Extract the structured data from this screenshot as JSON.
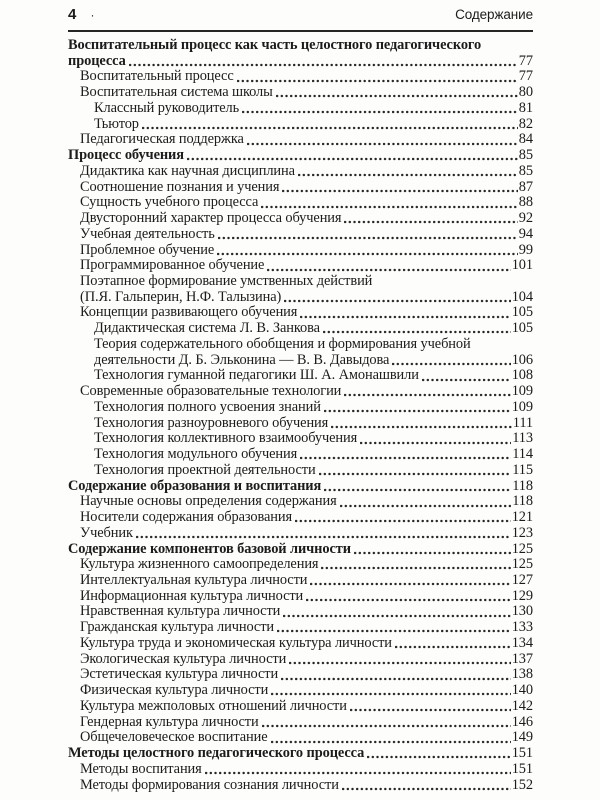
{
  "header": {
    "page_number": "4",
    "separator_bullet": "·",
    "title": "Содержание"
  },
  "colors": {
    "text": "#1c1c1c",
    "rule": "#262626",
    "background": "#fdfdfc"
  },
  "toc": {
    "entries": [
      {
        "level": 0,
        "bold": true,
        "lines": [
          "Воспитательный процесс как часть целостного педагогического",
          "процесса"
        ],
        "page": "77"
      },
      {
        "level": 1,
        "bold": false,
        "lines": [
          "Воспитательный процесс"
        ],
        "page": "77"
      },
      {
        "level": 1,
        "bold": false,
        "lines": [
          "Воспитательная система школы"
        ],
        "page": "80"
      },
      {
        "level": 2,
        "bold": false,
        "lines": [
          "Классный руководитель"
        ],
        "page": "81"
      },
      {
        "level": 2,
        "bold": false,
        "lines": [
          "Тьютор"
        ],
        "page": "82"
      },
      {
        "level": 1,
        "bold": false,
        "lines": [
          "Педагогическая поддержка"
        ],
        "page": "84"
      },
      {
        "level": 0,
        "bold": true,
        "lines": [
          "Процесс обучения"
        ],
        "page": "85"
      },
      {
        "level": 1,
        "bold": false,
        "lines": [
          "Дидактика как научная дисциплина"
        ],
        "page": "85"
      },
      {
        "level": 1,
        "bold": false,
        "lines": [
          "Соотношение познания и учения"
        ],
        "page": "87"
      },
      {
        "level": 1,
        "bold": false,
        "lines": [
          "Сущность учебного процесса"
        ],
        "page": "88"
      },
      {
        "level": 1,
        "bold": false,
        "lines": [
          "Двусторонний характер процесса обучения"
        ],
        "page": "92"
      },
      {
        "level": 1,
        "bold": false,
        "lines": [
          "Учебная деятельность"
        ],
        "page": "94"
      },
      {
        "level": 1,
        "bold": false,
        "lines": [
          "Проблемное обучение"
        ],
        "page": "99"
      },
      {
        "level": 1,
        "bold": false,
        "lines": [
          "Программированное обучение"
        ],
        "page": "101"
      },
      {
        "level": 1,
        "bold": false,
        "lines": [
          "Поэтапное формирование умственных действий",
          "(П.Я. Гальперин, Н.Ф. Талызина)"
        ],
        "page": "104"
      },
      {
        "level": 1,
        "bold": false,
        "lines": [
          "Концепции развивающего обучения"
        ],
        "page": "105"
      },
      {
        "level": 2,
        "bold": false,
        "lines": [
          "Дидактическая система Л. В. Занкова"
        ],
        "page": "105"
      },
      {
        "level": 2,
        "bold": false,
        "lines": [
          "Теория содержательного обобщения и формирования учебной",
          "деятельности Д. Б. Эльконина — В. В. Давыдова"
        ],
        "page": "106"
      },
      {
        "level": 2,
        "bold": false,
        "lines": [
          "Технология гуманной педагогики Ш. А. Амонашвили"
        ],
        "page": "108"
      },
      {
        "level": 1,
        "bold": false,
        "lines": [
          "Современные образовательные технологии"
        ],
        "page": "109"
      },
      {
        "level": 2,
        "bold": false,
        "lines": [
          "Технология полного усвоения знаний"
        ],
        "page": "109"
      },
      {
        "level": 2,
        "bold": false,
        "lines": [
          "Технология разноуровневого обучения"
        ],
        "page": "111"
      },
      {
        "level": 2,
        "bold": false,
        "lines": [
          "Технология коллективного взаимообучения"
        ],
        "page": "113"
      },
      {
        "level": 2,
        "bold": false,
        "lines": [
          "Технология модульного обучения"
        ],
        "page": "114"
      },
      {
        "level": 2,
        "bold": false,
        "lines": [
          "Технология проектной деятельности"
        ],
        "page": "115"
      },
      {
        "level": 0,
        "bold": true,
        "lines": [
          "Содержание образования и воспитания"
        ],
        "page": "118"
      },
      {
        "level": 1,
        "bold": false,
        "lines": [
          "Научные основы определения содержания"
        ],
        "page": "118"
      },
      {
        "level": 1,
        "bold": false,
        "lines": [
          "Носители содержания образования"
        ],
        "page": "121"
      },
      {
        "level": 1,
        "bold": false,
        "lines": [
          "Учебник"
        ],
        "page": "123"
      },
      {
        "level": 0,
        "bold": true,
        "lines": [
          "Содержание компонентов базовой личности"
        ],
        "page": "125"
      },
      {
        "level": 1,
        "bold": false,
        "lines": [
          "Культура жизненного самоопределения"
        ],
        "page": "125"
      },
      {
        "level": 1,
        "bold": false,
        "lines": [
          "Интеллектуальная культура личности"
        ],
        "page": "127"
      },
      {
        "level": 1,
        "bold": false,
        "lines": [
          "Информационная культура личности"
        ],
        "page": "129"
      },
      {
        "level": 1,
        "bold": false,
        "lines": [
          "Нравственная культура личности"
        ],
        "page": "130"
      },
      {
        "level": 1,
        "bold": false,
        "lines": [
          "Гражданская культура личности"
        ],
        "page": "133"
      },
      {
        "level": 1,
        "bold": false,
        "lines": [
          "Культура труда и экономическая культура личности"
        ],
        "page": "134"
      },
      {
        "level": 1,
        "bold": false,
        "lines": [
          "Экологическая культура личности"
        ],
        "page": "137"
      },
      {
        "level": 1,
        "bold": false,
        "lines": [
          "Эстетическая культура личности"
        ],
        "page": "138"
      },
      {
        "level": 1,
        "bold": false,
        "lines": [
          "Физическая культура личности"
        ],
        "page": "140"
      },
      {
        "level": 1,
        "bold": false,
        "lines": [
          "Культура межполовых отношений личности"
        ],
        "page": "142"
      },
      {
        "level": 1,
        "bold": false,
        "lines": [
          "Гендерная культура личности"
        ],
        "page": "146"
      },
      {
        "level": 1,
        "bold": false,
        "lines": [
          "Общечеловеческое воспитание"
        ],
        "page": "149"
      },
      {
        "level": 0,
        "bold": true,
        "lines": [
          "Методы целостного педагогического процесса"
        ],
        "page": "151"
      },
      {
        "level": 1,
        "bold": false,
        "lines": [
          "Методы воспитания"
        ],
        "page": "151"
      },
      {
        "level": 1,
        "bold": false,
        "lines": [
          "Методы формирования сознания личности"
        ],
        "page": "152"
      }
    ]
  }
}
